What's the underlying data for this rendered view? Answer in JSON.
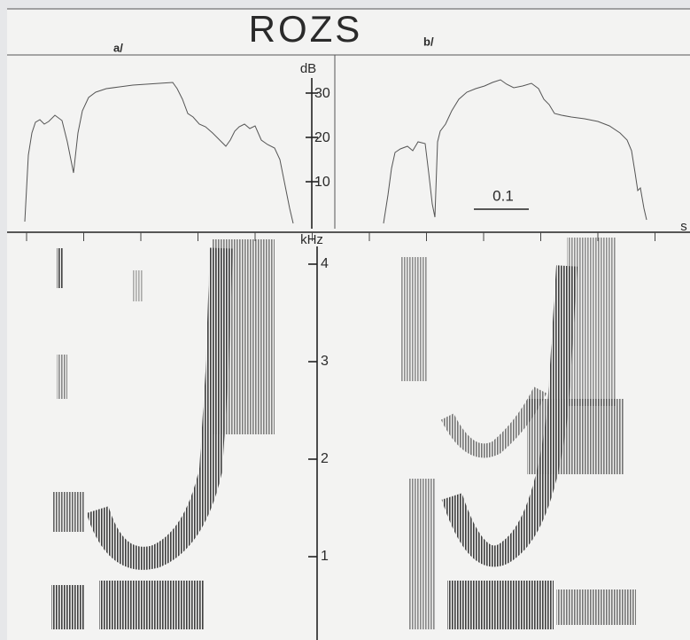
{
  "title": "ROZS",
  "panels": [
    {
      "label": "a/"
    },
    {
      "label": "b/"
    }
  ],
  "intensity_axis": {
    "unit": "dB",
    "ticks": [
      "30",
      "20",
      "10"
    ]
  },
  "time_scale": {
    "label": "0.1",
    "unit": "s"
  },
  "frequency_axis": {
    "unit": "kHz",
    "ticks": [
      "4",
      "3",
      "2",
      "1"
    ]
  }
}
